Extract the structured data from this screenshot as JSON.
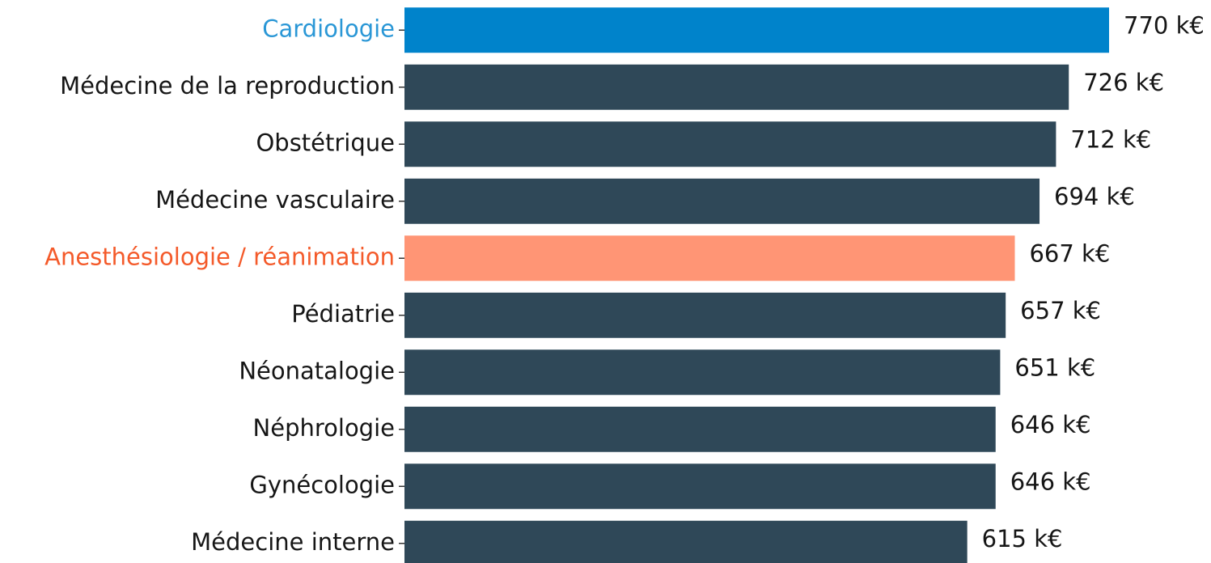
{
  "chart_data": {
    "type": "barh",
    "categories": [
      "Cardiologie",
      "Médecine de la reproduction",
      "Obstétrique",
      "Médecine vasculaire",
      "Anesthésiologie / réanimation",
      "Pédiatrie",
      "Néonatalogie",
      "Néphrologie",
      "Gynécologie",
      "Médecine interne"
    ],
    "values": [
      770,
      726,
      712,
      694,
      667,
      657,
      651,
      646,
      646,
      615
    ],
    "value_labels": [
      "770 k€",
      "726 k€",
      "712 k€",
      "694 k€",
      "667 k€",
      "657 k€",
      "651 k€",
      "646 k€",
      "646 k€",
      "615 k€"
    ],
    "colors": [
      "#0083cb",
      "#2f4858",
      "#2f4858",
      "#2f4858",
      "#ff9575",
      "#2f4858",
      "#2f4858",
      "#2f4858",
      "#2f4858",
      "#2f4858"
    ],
    "label_colors": [
      "#2a97d6",
      "#161616",
      "#161616",
      "#161616",
      "#f45a2a",
      "#161616",
      "#161616",
      "#161616",
      "#161616",
      "#161616"
    ]
  }
}
